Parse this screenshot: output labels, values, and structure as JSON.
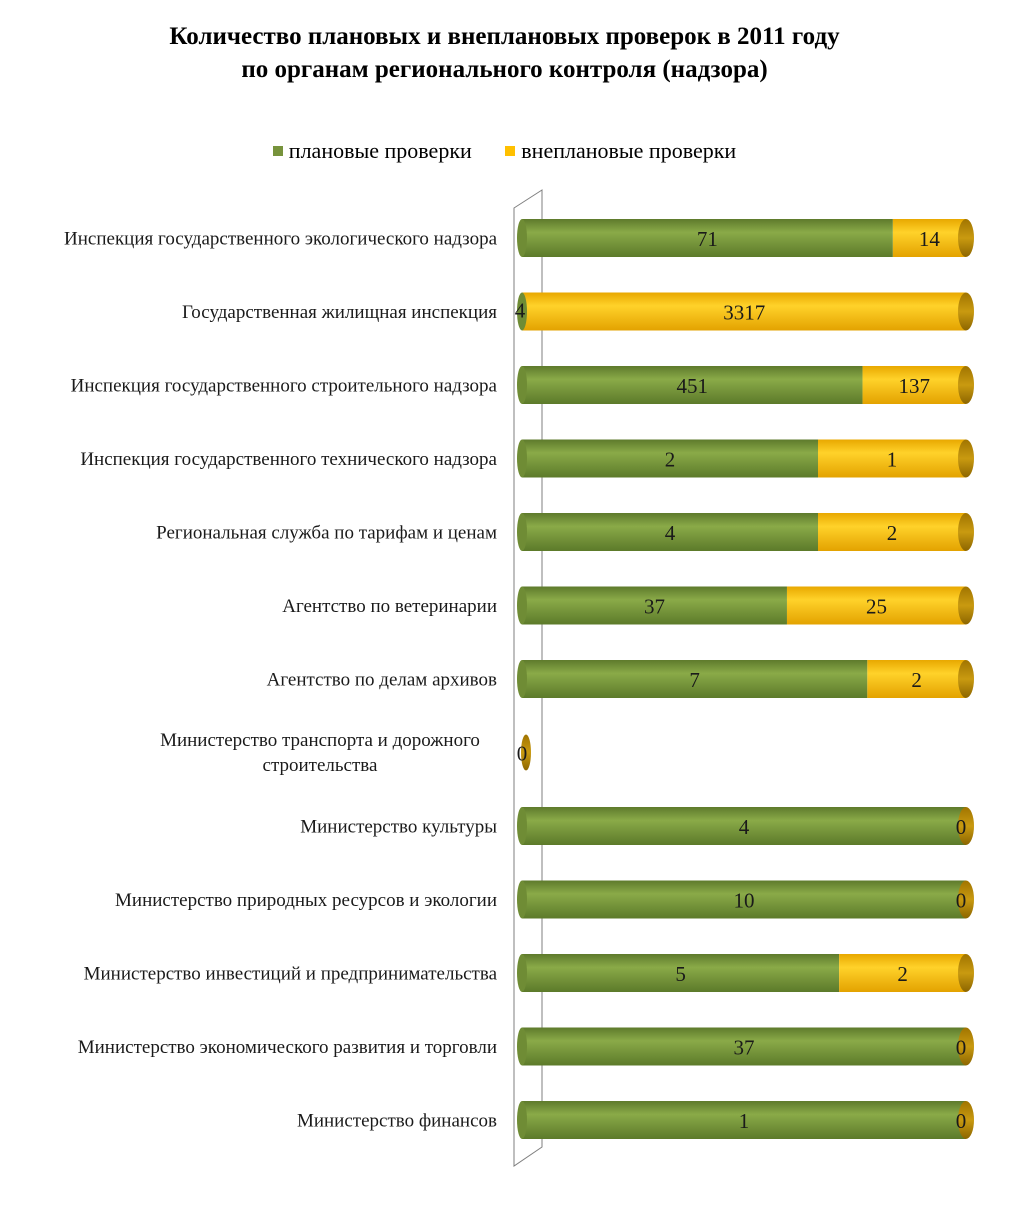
{
  "colors": {
    "planned": "#77933c",
    "unplanned": "#ffc000",
    "label": "#1a1a1a"
  },
  "chart_data": {
    "type": "bar",
    "orientation": "horizontal",
    "stacked": "percent",
    "title_line1": "Количество плановых и внеплановых проверок в 2011 году",
    "title_line2": "по органам регионального контроля (надзора)",
    "legend_placement": "top",
    "categories": [
      [
        "Инспекция государственного экологического надзора"
      ],
      [
        "Государственная жилищная инспекция"
      ],
      [
        "Инспекция государственного строительного надзора"
      ],
      [
        "Инспекция государственного технического надзора"
      ],
      [
        "Региональная служба по тарифам и ценам"
      ],
      [
        "Агентство по ветеринарии"
      ],
      [
        "Агентство по делам архивов"
      ],
      [
        "Министерство транспорта и дорожного",
        "строительства"
      ],
      [
        "Министерство культуры"
      ],
      [
        "Министерство природных ресурсов и экологии"
      ],
      [
        "Министерство инвестиций и предпринимательства"
      ],
      [
        "Министерство экономического развития и торговли"
      ],
      [
        "Министерство финансов"
      ]
    ],
    "series": [
      {
        "name": "плановые проверки",
        "values": [
          71,
          4,
          451,
          2,
          4,
          37,
          7,
          0,
          4,
          10,
          5,
          37,
          1
        ]
      },
      {
        "name": "внеплановые проверки",
        "values": [
          14,
          3317,
          137,
          1,
          2,
          25,
          2,
          0,
          0,
          0,
          2,
          0,
          0
        ]
      }
    ],
    "grid": false
  }
}
